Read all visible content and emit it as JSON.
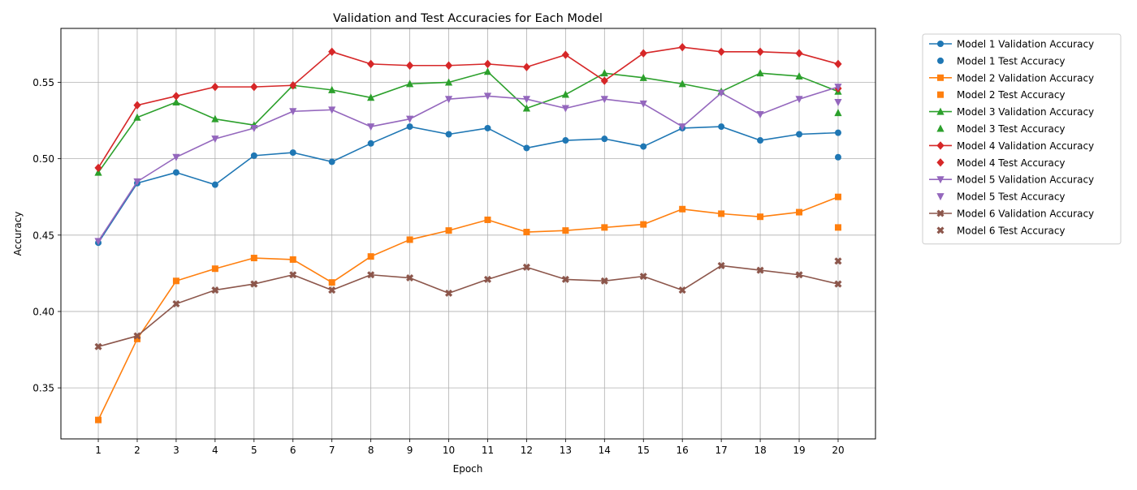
{
  "chart_data": {
    "type": "line",
    "title": "Validation and Test Accuracies for Each Model",
    "xlabel": "Epoch",
    "ylabel": "Accuracy",
    "x": [
      1,
      2,
      3,
      4,
      5,
      6,
      7,
      8,
      9,
      10,
      11,
      12,
      13,
      14,
      15,
      16,
      17,
      18,
      19,
      20
    ],
    "xlim": [
      0.04,
      20.96
    ],
    "ylim": [
      0.3166,
      0.5853
    ],
    "yticks": [
      0.35,
      0.4,
      0.45,
      0.5,
      0.55
    ],
    "ytick_labels": [
      "0.35",
      "0.40",
      "0.45",
      "0.50",
      "0.55"
    ],
    "grid": true,
    "legend_position": "outside-right",
    "series": [
      {
        "name": "Model 1 Validation Accuracy",
        "color": "#1f77b4",
        "marker": "circle",
        "values": [
          0.445,
          0.484,
          0.491,
          0.483,
          0.502,
          0.504,
          0.498,
          0.51,
          0.521,
          0.516,
          0.52,
          0.507,
          0.512,
          0.513,
          0.508,
          0.52,
          0.521,
          0.512,
          0.516,
          0.517
        ]
      },
      {
        "name": "Model 1 Test Accuracy",
        "color": "#1f77b4",
        "marker": "circle",
        "x": 20,
        "value": 0.501
      },
      {
        "name": "Model 2 Validation Accuracy",
        "color": "#ff7f0e",
        "marker": "square",
        "values": [
          0.329,
          0.382,
          0.42,
          0.428,
          0.435,
          0.434,
          0.419,
          0.436,
          0.447,
          0.453,
          0.46,
          0.452,
          0.453,
          0.455,
          0.457,
          0.467,
          0.464,
          0.462,
          0.465,
          0.475
        ]
      },
      {
        "name": "Model 2 Test Accuracy",
        "color": "#ff7f0e",
        "marker": "square",
        "x": 20,
        "value": 0.455
      },
      {
        "name": "Model 3 Validation Accuracy",
        "color": "#2ca02c",
        "marker": "triangle-up",
        "values": [
          0.491,
          0.527,
          0.537,
          0.526,
          0.522,
          0.548,
          0.545,
          0.54,
          0.549,
          0.55,
          0.557,
          0.533,
          0.542,
          0.556,
          0.553,
          0.549,
          0.544,
          0.556,
          0.554,
          0.544
        ]
      },
      {
        "name": "Model 3 Test Accuracy",
        "color": "#2ca02c",
        "marker": "triangle-up",
        "x": 20,
        "value": 0.53
      },
      {
        "name": "Model 4 Validation Accuracy",
        "color": "#d62728",
        "marker": "diamond",
        "values": [
          0.494,
          0.535,
          0.541,
          0.547,
          0.547,
          0.548,
          0.57,
          0.562,
          0.561,
          0.561,
          0.562,
          0.56,
          0.568,
          0.551,
          0.569,
          0.573,
          0.57,
          0.57,
          0.569,
          0.562
        ]
      },
      {
        "name": "Model 4 Test Accuracy",
        "color": "#d62728",
        "marker": "diamond",
        "x": 20,
        "value": 0.546
      },
      {
        "name": "Model 5 Validation Accuracy",
        "color": "#9467bd",
        "marker": "triangle-down",
        "values": [
          0.446,
          0.485,
          0.501,
          0.513,
          0.52,
          0.531,
          0.532,
          0.521,
          0.526,
          0.539,
          0.541,
          0.539,
          0.533,
          0.539,
          0.536,
          0.521,
          0.543,
          0.529,
          0.539,
          0.547
        ]
      },
      {
        "name": "Model 5 Test Accuracy",
        "color": "#9467bd",
        "marker": "triangle-down",
        "x": 20,
        "value": 0.537
      },
      {
        "name": "Model 6 Validation Accuracy",
        "color": "#8c564b",
        "marker": "x",
        "values": [
          0.377,
          0.384,
          0.405,
          0.414,
          0.418,
          0.424,
          0.414,
          0.424,
          0.422,
          0.412,
          0.421,
          0.429,
          0.421,
          0.42,
          0.423,
          0.414,
          0.43,
          0.427,
          0.424,
          0.418
        ]
      },
      {
        "name": "Model 6 Test Accuracy",
        "color": "#8c564b",
        "marker": "x",
        "x": 20,
        "value": 0.433
      }
    ]
  }
}
